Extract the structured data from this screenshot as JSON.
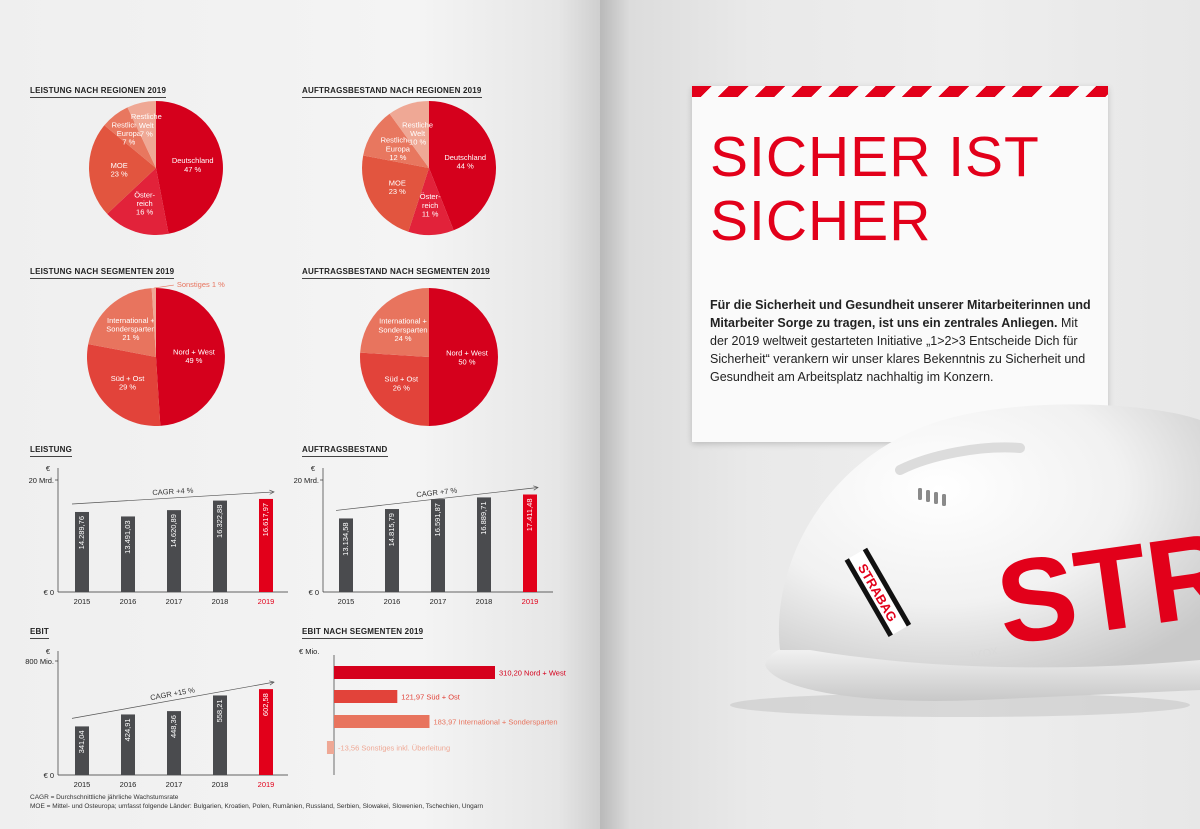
{
  "colors": {
    "dark_red": "#d5001c",
    "red": "#e2001a",
    "mid_red": "#e2433a",
    "light_red": "#e8745e",
    "pale_red": "#efa895",
    "bar_grey": "#4a4b4e"
  },
  "titles": {
    "leistung_regionen": "LEISTUNG NACH REGIONEN 2019",
    "auftrag_regionen": "AUFTRAGSBESTAND NACH REGIONEN 2019",
    "leistung_segmente": "LEISTUNG NACH SEGMENTEN 2019",
    "auftrag_segmente": "AUFTRAGSBESTAND NACH SEGMENTEN 2019",
    "leistung": "LEISTUNG",
    "auftragsbestand": "AUFTRAGSBESTAND",
    "ebit": "EBIT",
    "ebit_segmente": "EBIT NACH SEGMENTEN 2019"
  },
  "footnotes": {
    "cagr": "CAGR = Durchschnittliche jährliche Wachstumsrate",
    "moe": "MOE = Mittel- und Osteuropa; umfasst folgende Länder: Bulgarien, Kroatien, Polen, Rumänien, Russland, Serbien, Slowakei, Slowenien, Tschechien, Ungarn"
  },
  "chart_data": [
    {
      "id": "pie_leistung_regionen",
      "type": "pie",
      "slices": [
        {
          "label": [
            "Deutschland",
            "47 %"
          ],
          "value": 47,
          "color": "#d5001c"
        },
        {
          "label": [
            "Öster-",
            "reich",
            "16 %"
          ],
          "value": 16,
          "color": "#e2223a"
        },
        {
          "label": [
            "MOE",
            "23 %"
          ],
          "value": 23,
          "color": "#e2553f"
        },
        {
          "label": [
            "Restliches",
            "Europa",
            "7 %"
          ],
          "value": 7,
          "color": "#e8775f"
        },
        {
          "label": [
            "Restliche",
            "Welt",
            "7 %"
          ],
          "value": 7,
          "color": "#efa895"
        }
      ]
    },
    {
      "id": "pie_auftrag_regionen",
      "type": "pie",
      "slices": [
        {
          "label": [
            "Deutschland",
            "44 %"
          ],
          "value": 44,
          "color": "#d5001c"
        },
        {
          "label": [
            "Öster-",
            "reich",
            "11 %"
          ],
          "value": 11,
          "color": "#e2223a"
        },
        {
          "label": [
            "MOE",
            "23 %"
          ],
          "value": 23,
          "color": "#e2553f"
        },
        {
          "label": [
            "Restliches",
            "Europa",
            "12 %"
          ],
          "value": 12,
          "color": "#e8775f"
        },
        {
          "label": [
            "Restliche",
            "Welt",
            "10 %"
          ],
          "value": 10,
          "color": "#efa895"
        }
      ]
    },
    {
      "id": "pie_leistung_segmente",
      "type": "pie",
      "slices": [
        {
          "label": [
            "Nord + West",
            "49 %"
          ],
          "value": 49,
          "color": "#d5001c"
        },
        {
          "label": [
            "Süd + Ost",
            "29 %"
          ],
          "value": 29,
          "color": "#e2433a"
        },
        {
          "label": [
            "International +",
            "Sondersparten",
            "21 %"
          ],
          "value": 21,
          "color": "#e8745e"
        },
        {
          "label": [
            "Sonstiges 1 %"
          ],
          "value": 1,
          "color": "#efa895",
          "callout": true
        }
      ]
    },
    {
      "id": "pie_auftrag_segmente",
      "type": "pie",
      "slices": [
        {
          "label": [
            "Nord + West",
            "50 %"
          ],
          "value": 50,
          "color": "#d5001c"
        },
        {
          "label": [
            "Süd + Ost",
            "26 %"
          ],
          "value": 26,
          "color": "#e2433a"
        },
        {
          "label": [
            "International +",
            "Sondersparten",
            "24 %"
          ],
          "value": 24,
          "color": "#e8745e"
        }
      ]
    },
    {
      "id": "bar_leistung",
      "type": "bar",
      "categories": [
        "2015",
        "2016",
        "2017",
        "2018",
        "2019"
      ],
      "values": [
        14289.76,
        13491.03,
        14620.89,
        16322.88,
        16617.97
      ],
      "value_labels": [
        "14.289,76",
        "13.491,03",
        "14.620,89",
        "16.322,88",
        "16.617,97"
      ],
      "ylim": [
        0,
        20000
      ],
      "y_unit": "€",
      "y_top_label": "20 Mrd.",
      "y_zero_label": "€ 0",
      "cagr": "CAGR +4 %"
    },
    {
      "id": "bar_auftragsbestand",
      "type": "bar",
      "categories": [
        "2015",
        "2016",
        "2017",
        "2018",
        "2019"
      ],
      "values": [
        13134.58,
        14815.79,
        16591.87,
        16889.71,
        17411.48
      ],
      "value_labels": [
        "13.134,58",
        "14.815,79",
        "16.591,87",
        "16.889,71",
        "17.411,48"
      ],
      "ylim": [
        0,
        20000
      ],
      "y_unit": "€",
      "y_top_label": "20 Mrd.",
      "y_zero_label": "€ 0",
      "cagr": "CAGR +7 %"
    },
    {
      "id": "bar_ebit",
      "type": "bar",
      "categories": [
        "2015",
        "2016",
        "2017",
        "2018",
        "2019"
      ],
      "values": [
        341.04,
        424.91,
        448.36,
        558.21,
        602.58
      ],
      "value_labels": [
        "341,04",
        "424,91",
        "448,36",
        "558,21",
        "602,58"
      ],
      "ylim": [
        0,
        800
      ],
      "y_unit": "€",
      "y_top_label": "800 Mio.",
      "y_zero_label": "€ 0",
      "cagr": "CAGR +15 %"
    },
    {
      "id": "hbar_ebit_segmente",
      "type": "bar",
      "orientation": "horizontal",
      "x_unit": "€ Mio.",
      "rows": [
        {
          "value": 310.2,
          "label": "310,20 Nord + West",
          "color": "#d5001c"
        },
        {
          "value": 121.97,
          "label": "121,97 Süd + Ost",
          "color": "#e2433a"
        },
        {
          "value": 183.97,
          "label": "183,97 International + Sondersparten",
          "color": "#e8745e"
        },
        {
          "value": -13.56,
          "label": "-13,56 Sonstiges inkl. Überleitung",
          "color": "#efa895"
        }
      ]
    }
  ],
  "right": {
    "headline_line1": "SICHER IST",
    "headline_line2": "SICHER",
    "body_bold": "Für die Sicherheit und Gesundheit unserer Mitarbeiterinnen und Mitarbeiter Sorge zu tragen, ist uns ein zentrales Anliegen.",
    "body_regular": " Mit der 2019 weltweit gestarteten Initiative „1>2>3 Entscheide Dich für Sicherheit“ verankern wir unser klares Bekenntnis zu Sicherheit und Gesundheit am Arbeitsplatz nachhaltig im Konzern.",
    "helmet_logo": "STRABAG",
    "helmet_big_text": "STR",
    "helmet_small_text": "ӀѴОХ"
  }
}
